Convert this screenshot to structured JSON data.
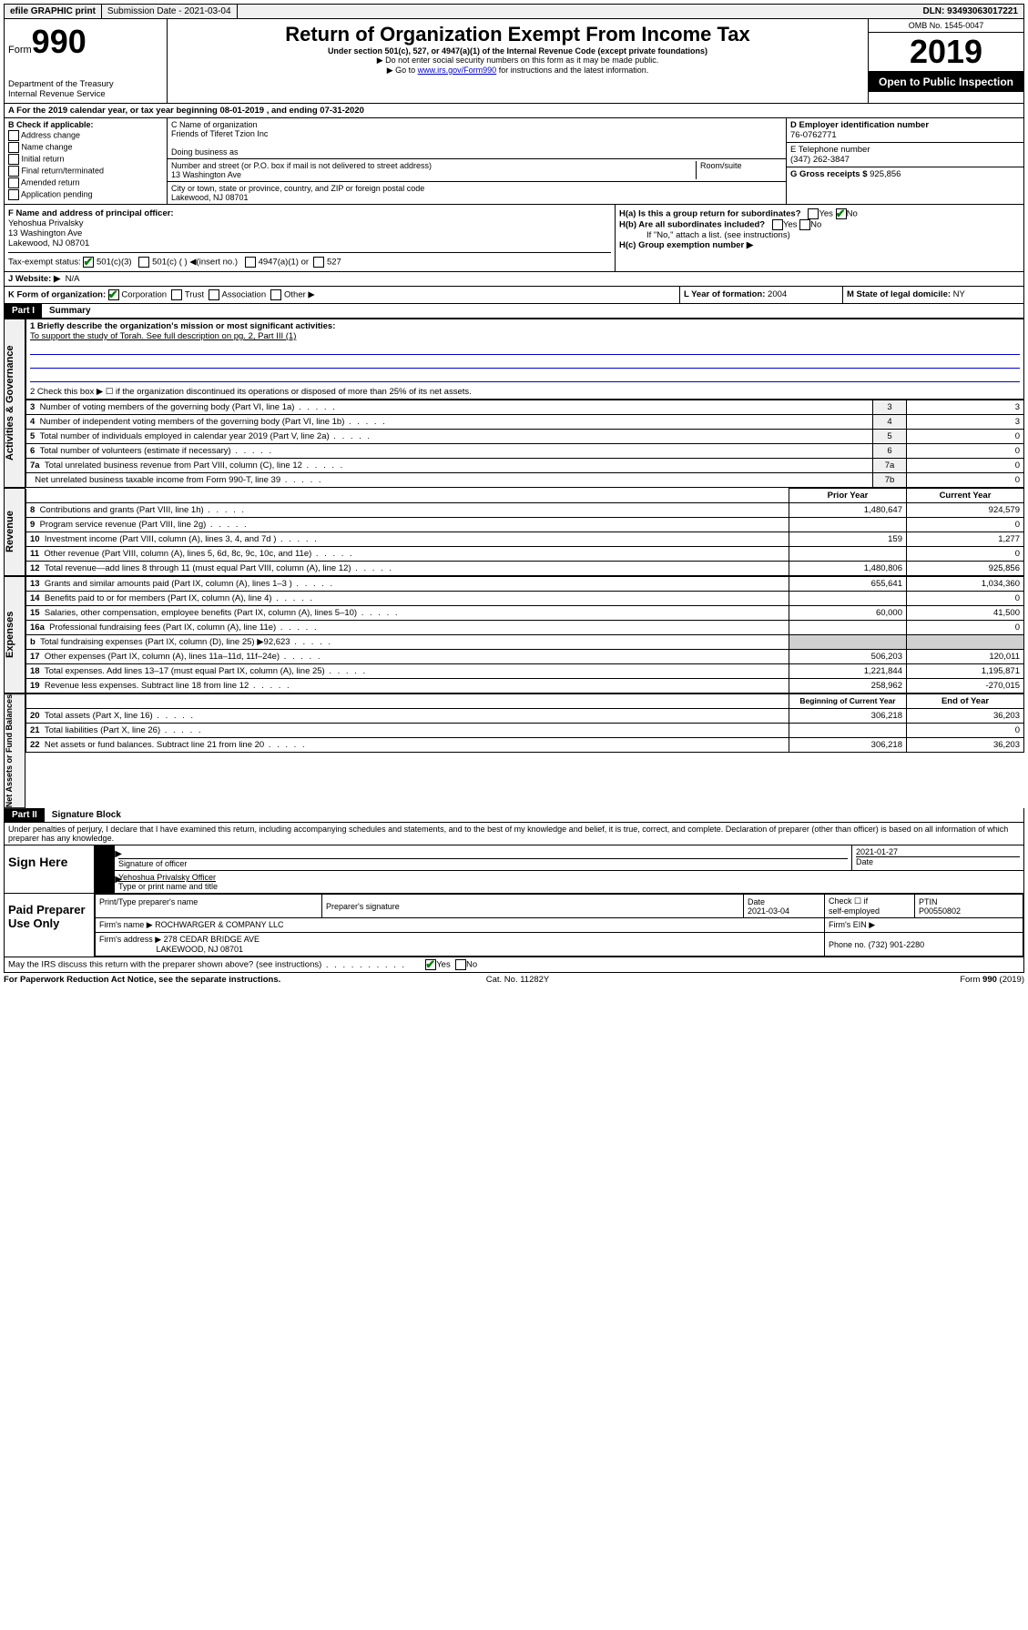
{
  "topbar": {
    "efile": "efile GRAPHIC print",
    "submission": "Submission Date - 2021-03-04",
    "dln": "DLN: 93493063017221"
  },
  "header": {
    "form_prefix": "Form",
    "form_number": "990",
    "dept1": "Department of the Treasury",
    "dept2": "Internal Revenue Service",
    "title": "Return of Organization Exempt From Income Tax",
    "subtitle": "Under section 501(c), 527, or 4947(a)(1) of the Internal Revenue Code (except private foundations)",
    "note1": "▶ Do not enter social security numbers on this form as it may be made public.",
    "note2_pre": "▶ Go to ",
    "note2_link": "www.irs.gov/Form990",
    "note2_post": " for instructions and the latest information.",
    "omb": "OMB No. 1545-0047",
    "year": "2019",
    "open": "Open to Public Inspection"
  },
  "rowA": "A   For the 2019 calendar year, or tax year beginning 08-01-2019     , and ending 07-31-2020",
  "colB": {
    "title": "B Check if applicable:",
    "items": [
      "Address change",
      "Name change",
      "Initial return",
      "Final return/terminated",
      "Amended return",
      "Application pending"
    ]
  },
  "colC": {
    "name_label": "C Name of organization",
    "name": "Friends of Tiferet Tzion Inc",
    "dba_label": "Doing business as",
    "street_label": "Number and street (or P.O. box if mail is not delivered to street address)",
    "room_label": "Room/suite",
    "street": "13 Washington Ave",
    "city_label": "City or town, state or province, country, and ZIP or foreign postal code",
    "city": "Lakewood, NJ  08701"
  },
  "colD": {
    "ein_label": "D Employer identification number",
    "ein": "76-0762771",
    "phone_label": "E Telephone number",
    "phone": "(347) 262-3847",
    "gross_label": "G Gross receipts $",
    "gross": "925,856"
  },
  "rowF": {
    "label": "F  Name and address of principal officer:",
    "name": "Yehoshua Privalsky",
    "addr1": "13 Washington Ave",
    "addr2": "Lakewood, NJ  08701"
  },
  "rowH": {
    "a": "H(a)  Is this a group return for subordinates?",
    "b": "H(b)  Are all subordinates included?",
    "b_note": "If \"No,\" attach a list. (see instructions)",
    "c": "H(c)  Group exemption number ▶"
  },
  "taxExempt": {
    "label": "Tax-exempt status:",
    "opt1": "501(c)(3)",
    "opt2": "501(c) (   ) ◀(insert no.)",
    "opt3": "4947(a)(1) or",
    "opt4": "527"
  },
  "rowJ": {
    "label": "J    Website: ▶",
    "val": "N/A"
  },
  "rowK": {
    "label": "K Form of organization:",
    "opts": [
      "Corporation",
      "Trust",
      "Association",
      "Other ▶"
    ],
    "l_label": "L Year of formation:",
    "l_val": "2004",
    "m_label": "M State of legal domicile:",
    "m_val": "NY"
  },
  "part1": {
    "label": "Part I",
    "title": "Summary"
  },
  "summary": {
    "line1_label": "1   Briefly describe the organization's mission or most significant activities:",
    "line1_text": "To support the study of Torah. See full description on pg. 2, Part III (1)",
    "line2": "2    Check this box ▶ ☐  if the organization discontinued its operations or disposed of more than 25% of its net assets.",
    "rows_gov": [
      {
        "n": "3",
        "label": "Number of voting members of the governing body (Part VI, line 1a)",
        "box": "3",
        "val": "3"
      },
      {
        "n": "4",
        "label": "Number of independent voting members of the governing body (Part VI, line 1b)",
        "box": "4",
        "val": "3"
      },
      {
        "n": "5",
        "label": "Total number of individuals employed in calendar year 2019 (Part V, line 2a)",
        "box": "5",
        "val": "0"
      },
      {
        "n": "6",
        "label": "Total number of volunteers (estimate if necessary)",
        "box": "6",
        "val": "0"
      },
      {
        "n": "7a",
        "label": "Total unrelated business revenue from Part VIII, column (C), line 12",
        "box": "7a",
        "val": "0"
      },
      {
        "n": "",
        "label": "Net unrelated business taxable income from Form 990-T, line 39",
        "box": "7b",
        "val": "0"
      }
    ],
    "col_prior": "Prior Year",
    "col_current": "Current Year",
    "rows_rev": [
      {
        "n": "8",
        "label": "Contributions and grants (Part VIII, line 1h)",
        "p": "1,480,647",
        "c": "924,579"
      },
      {
        "n": "9",
        "label": "Program service revenue (Part VIII, line 2g)",
        "p": "",
        "c": "0"
      },
      {
        "n": "10",
        "label": "Investment income (Part VIII, column (A), lines 3, 4, and 7d )",
        "p": "159",
        "c": "1,277"
      },
      {
        "n": "11",
        "label": "Other revenue (Part VIII, column (A), lines 5, 6d, 8c, 9c, 10c, and 11e)",
        "p": "",
        "c": "0"
      },
      {
        "n": "12",
        "label": "Total revenue—add lines 8 through 11 (must equal Part VIII, column (A), line 12)",
        "p": "1,480,806",
        "c": "925,856"
      }
    ],
    "rows_exp": [
      {
        "n": "13",
        "label": "Grants and similar amounts paid (Part IX, column (A), lines 1–3 )",
        "p": "655,641",
        "c": "1,034,360"
      },
      {
        "n": "14",
        "label": "Benefits paid to or for members (Part IX, column (A), line 4)",
        "p": "",
        "c": "0"
      },
      {
        "n": "15",
        "label": "Salaries, other compensation, employee benefits (Part IX, column (A), lines 5–10)",
        "p": "60,000",
        "c": "41,500"
      },
      {
        "n": "16a",
        "label": "Professional fundraising fees (Part IX, column (A), line 11e)",
        "p": "",
        "c": "0"
      },
      {
        "n": "b",
        "label": "Total fundraising expenses (Part IX, column (D), line 25) ▶92,623",
        "p": "shaded",
        "c": "shaded"
      },
      {
        "n": "17",
        "label": "Other expenses (Part IX, column (A), lines 11a–11d, 11f–24e)",
        "p": "506,203",
        "c": "120,011"
      },
      {
        "n": "18",
        "label": "Total expenses. Add lines 13–17 (must equal Part IX, column (A), line 25)",
        "p": "1,221,844",
        "c": "1,195,871"
      },
      {
        "n": "19",
        "label": "Revenue less expenses. Subtract line 18 from line 12",
        "p": "258,962",
        "c": "-270,015"
      }
    ],
    "col_begin": "Beginning of Current Year",
    "col_end": "End of Year",
    "rows_net": [
      {
        "n": "20",
        "label": "Total assets (Part X, line 16)",
        "p": "306,218",
        "c": "36,203"
      },
      {
        "n": "21",
        "label": "Total liabilities (Part X, line 26)",
        "p": "",
        "c": "0"
      },
      {
        "n": "22",
        "label": "Net assets or fund balances. Subtract line 21 from line 20",
        "p": "306,218",
        "c": "36,203"
      }
    ]
  },
  "vlabels": {
    "gov": "Activities & Governance",
    "rev": "Revenue",
    "exp": "Expenses",
    "net": "Net Assets or Fund Balances"
  },
  "part2": {
    "label": "Part II",
    "title": "Signature Block",
    "perjury": "Under penalties of perjury, I declare that I have examined this return, including accompanying schedules and statements, and to the best of my knowledge and belief, it is true, correct, and complete. Declaration of preparer (other than officer) is based on all information of which preparer has any knowledge."
  },
  "sign": {
    "here": "Sign Here",
    "sig_label": "Signature of officer",
    "date": "2021-01-27",
    "date_label": "Date",
    "name": "Yehoshua Privalsky Officer",
    "name_label": "Type or print name and title"
  },
  "prep": {
    "title": "Paid Preparer Use Only",
    "h1": "Print/Type preparer's name",
    "h2": "Preparer's signature",
    "h3": "Date",
    "date": "2021-03-04",
    "h4_a": "Check ☐ if",
    "h4_b": "self-employed",
    "h5": "PTIN",
    "ptin": "P00550802",
    "firm_name_label": "Firm's name      ▶",
    "firm_name": "ROCHWARGER & COMPANY LLC",
    "firm_ein_label": "Firm's EIN ▶",
    "firm_addr_label": "Firm's address ▶",
    "firm_addr1": "278 CEDAR BRIDGE AVE",
    "firm_addr2": "LAKEWOOD, NJ  08701",
    "phone_label": "Phone no.",
    "phone": "(732) 901-2280"
  },
  "discuss": "May the IRS discuss this return with the preparer shown above? (see instructions)",
  "footer": {
    "left": "For Paperwork Reduction Act Notice, see the separate instructions.",
    "mid": "Cat. No. 11282Y",
    "right": "Form 990 (2019)"
  }
}
